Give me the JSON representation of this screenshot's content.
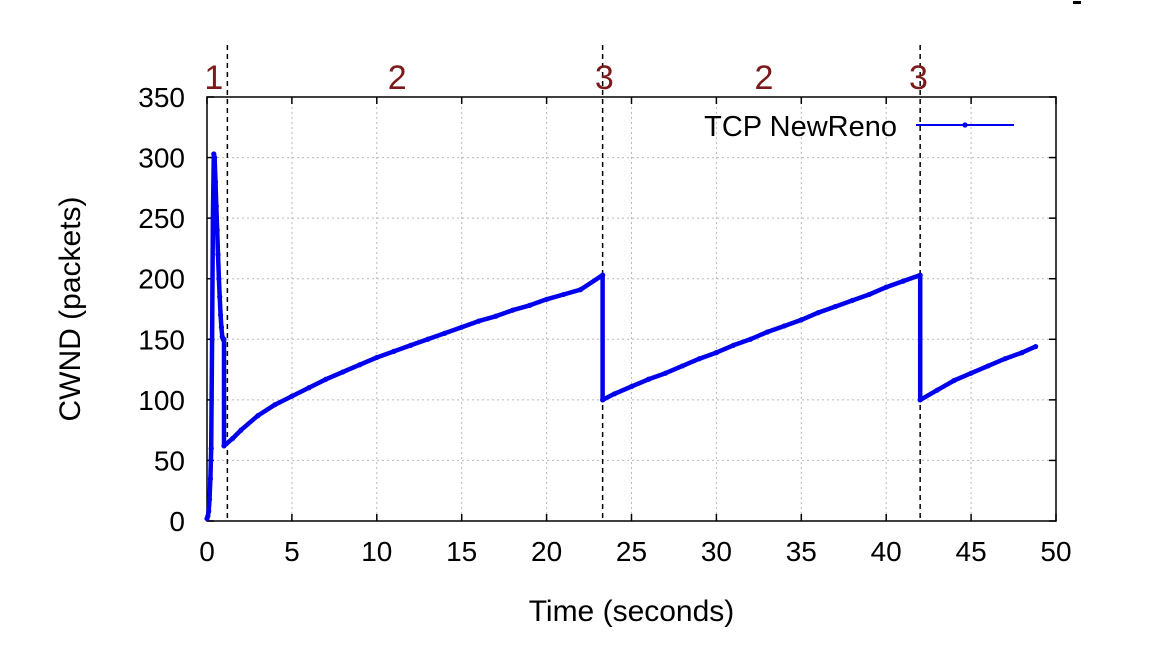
{
  "chart_data": {
    "type": "line",
    "xlabel": "Time (seconds)",
    "ylabel": "CWND (packets)",
    "xlim": [
      0,
      50
    ],
    "ylim": [
      0,
      350
    ],
    "xticks": [
      0,
      5,
      10,
      15,
      20,
      25,
      30,
      35,
      40,
      45,
      50
    ],
    "yticks": [
      0,
      50,
      100,
      150,
      200,
      250,
      300,
      350
    ],
    "grid": true,
    "legend_position": "top-right",
    "colors": {
      "series": "#0000ee",
      "phase_label": "#7a1a1a",
      "grid": "#b8b8b8"
    },
    "series": [
      {
        "name": "TCP NewReno",
        "x": [
          0.0,
          0.05,
          0.1,
          0.15,
          0.2,
          0.25,
          0.3,
          0.35,
          0.4,
          0.45,
          0.5,
          0.55,
          0.6,
          0.65,
          0.7,
          0.75,
          0.8,
          0.85,
          0.9,
          0.95,
          1.0,
          1.0,
          1.5,
          2,
          3,
          4,
          5,
          6,
          7,
          8,
          9,
          10,
          11,
          12,
          13,
          14,
          15,
          16,
          17,
          18,
          19,
          20,
          21,
          22,
          23.3,
          23.3,
          24,
          25,
          26,
          27,
          28,
          29,
          30,
          31,
          32,
          33,
          34,
          35,
          36,
          37,
          38,
          39,
          40,
          41,
          42.0,
          42.0,
          43,
          44,
          45,
          46,
          47,
          48,
          48.8
        ],
        "y": [
          2,
          4,
          8,
          18,
          35,
          60,
          150,
          250,
          303,
          300,
          280,
          260,
          240,
          220,
          200,
          185,
          170,
          160,
          152,
          150,
          150,
          62,
          68,
          75,
          87,
          96,
          103,
          110,
          117,
          123,
          129,
          135,
          140,
          145,
          150,
          155,
          160,
          165,
          169,
          174,
          178,
          183,
          187,
          191,
          203,
          100,
          105,
          111,
          117,
          122,
          128,
          134,
          139,
          145,
          150,
          156,
          161,
          166,
          172,
          177,
          182,
          187,
          193,
          198,
          203,
          100,
          108,
          116,
          122,
          128,
          134,
          139,
          144
        ]
      }
    ],
    "markers": [
      {
        "x": 1.2
      },
      {
        "x": 23.3
      },
      {
        "x": 42.0
      }
    ],
    "phase_labels": [
      {
        "text": "1",
        "x": 0.4
      },
      {
        "text": "2",
        "x": 11.2
      },
      {
        "text": "3",
        "x": 23.4
      },
      {
        "text": "2",
        "x": 32.8
      },
      {
        "text": "3",
        "x": 41.9
      }
    ]
  }
}
